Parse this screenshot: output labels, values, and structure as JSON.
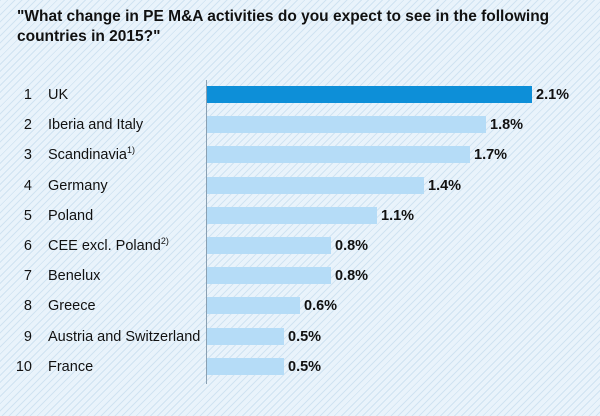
{
  "title_lines": [
    "\"What change in PE M&A activities do you expect to see in the following",
    "countries in 2015?\""
  ],
  "colors": {
    "highlight_bar": "#0d8fd8",
    "bar": "#b5dcf7",
    "background": "#e9f3fb"
  },
  "chart_data": {
    "type": "bar",
    "orientation": "horizontal",
    "title": "\"What change in PE M&A activities do you expect to see in the following countries in 2015?\"",
    "xlabel": "",
    "ylabel": "",
    "xlim": [
      0,
      2.1
    ],
    "grid": false,
    "rows": [
      {
        "rank": "1",
        "label": "UK",
        "sup": "",
        "value": 2.1,
        "value_label": "2.1%"
      },
      {
        "rank": "2",
        "label": "Iberia and Italy",
        "sup": "",
        "value": 1.8,
        "value_label": "1.8%"
      },
      {
        "rank": "3",
        "label": "Scandinavia",
        "sup": "1)",
        "value": 1.7,
        "value_label": "1.7%"
      },
      {
        "rank": "4",
        "label": "Germany",
        "sup": "",
        "value": 1.4,
        "value_label": "1.4%"
      },
      {
        "rank": "5",
        "label": "Poland",
        "sup": "",
        "value": 1.1,
        "value_label": "1.1%"
      },
      {
        "rank": "6",
        "label": "CEE excl. Poland",
        "sup": "2)",
        "value": 0.8,
        "value_label": "0.8%"
      },
      {
        "rank": "7",
        "label": "Benelux",
        "sup": "",
        "value": 0.8,
        "value_label": "0.8%"
      },
      {
        "rank": "8",
        "label": "Greece",
        "sup": "",
        "value": 0.6,
        "value_label": "0.6%"
      },
      {
        "rank": "9",
        "label": "Austria and Switzerland",
        "sup": "",
        "value": 0.5,
        "value_label": "0.5%"
      },
      {
        "rank": "10",
        "label": "France",
        "sup": "",
        "value": 0.5,
        "value_label": "0.5%"
      }
    ]
  }
}
